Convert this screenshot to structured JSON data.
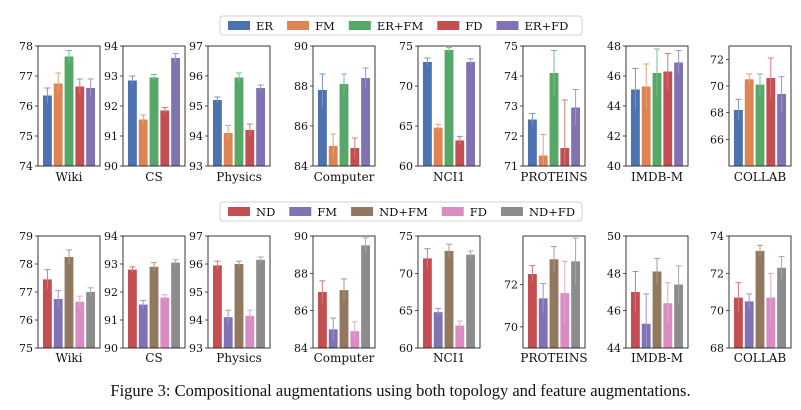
{
  "caption": "Figure 3: Compositional augmentations using both topology and feature augmentations.",
  "chart_data": [
    {
      "type": "bar",
      "legend": {
        "placement": "top-center",
        "series": [
          {
            "name": "ER",
            "color": "#4c72b0"
          },
          {
            "name": "FM",
            "color": "#dd8452"
          },
          {
            "name": "ER+FM",
            "color": "#55a868"
          },
          {
            "name": "FD",
            "color": "#c44e52"
          },
          {
            "name": "ER+FD",
            "color": "#8172b3"
          }
        ]
      },
      "panels": [
        {
          "dataset": "Wiki",
          "ylim": [
            74,
            78
          ],
          "ticks": [
            74,
            75,
            76,
            77,
            78
          ],
          "values": [
            76.35,
            76.75,
            77.65,
            76.65,
            76.6
          ],
          "errors": [
            0.25,
            0.35,
            0.2,
            0.25,
            0.3
          ]
        },
        {
          "dataset": "CS",
          "ylim": [
            90,
            94
          ],
          "ticks": [
            90,
            91,
            92,
            93,
            94
          ],
          "values": [
            92.85,
            91.55,
            92.95,
            91.85,
            93.6
          ],
          "errors": [
            0.15,
            0.15,
            0.1,
            0.1,
            0.15
          ]
        },
        {
          "dataset": "Physics",
          "ylim": [
            93,
            97
          ],
          "ticks": [
            93,
            94,
            95,
            96,
            97
          ],
          "values": [
            95.2,
            94.1,
            95.95,
            94.2,
            95.6
          ],
          "errors": [
            0.1,
            0.25,
            0.15,
            0.2,
            0.1
          ]
        },
        {
          "dataset": "Computer",
          "ylim": [
            84,
            90
          ],
          "ticks": [
            84,
            86,
            88,
            90
          ],
          "values": [
            87.8,
            85.0,
            88.1,
            84.9,
            88.4
          ],
          "errors": [
            0.8,
            0.6,
            0.5,
            0.5,
            0.5
          ]
        },
        {
          "dataset": "NCI1",
          "ylim": [
            60,
            75
          ],
          "ticks": [
            60,
            65,
            70,
            75
          ],
          "values": [
            73.0,
            64.8,
            74.5,
            63.2,
            73.0
          ],
          "errors": [
            0.5,
            0.4,
            0.3,
            0.5,
            0.4
          ]
        },
        {
          "dataset": "PROTEINS",
          "ylim": [
            71,
            75
          ],
          "ticks": [
            71,
            72,
            73,
            74,
            75
          ],
          "values": [
            72.55,
            71.35,
            74.1,
            71.6,
            72.95
          ],
          "errors": [
            0.2,
            0.7,
            0.75,
            1.6,
            0.6
          ]
        },
        {
          "dataset": "IMDB-M",
          "ylim": [
            40,
            48
          ],
          "ticks": [
            40,
            42,
            44,
            46,
            48
          ],
          "values": [
            45.1,
            45.3,
            46.2,
            46.3,
            46.9
          ],
          "errors": [
            1.4,
            1.5,
            1.6,
            1.2,
            0.8
          ]
        },
        {
          "dataset": "COLLAB",
          "ylim": [
            64,
            73
          ],
          "ticks": [
            66,
            68,
            70,
            72
          ],
          "values": [
            68.2,
            70.5,
            70.1,
            70.6,
            69.4
          ],
          "errors": [
            0.8,
            0.4,
            0.8,
            1.5,
            1.3
          ]
        }
      ]
    },
    {
      "type": "bar",
      "legend": {
        "placement": "top-center",
        "series": [
          {
            "name": "ND",
            "color": "#c44e52"
          },
          {
            "name": "FM",
            "color": "#8172b3"
          },
          {
            "name": "ND+FM",
            "color": "#937860"
          },
          {
            "name": "FD",
            "color": "#da8bc3"
          },
          {
            "name": "ND+FD",
            "color": "#8c8c8c"
          }
        ]
      },
      "panels": [
        {
          "dataset": "Wiki",
          "ylim": [
            75,
            79
          ],
          "ticks": [
            75,
            76,
            77,
            78,
            79
          ],
          "values": [
            77.45,
            76.75,
            78.25,
            76.65,
            77.0
          ],
          "errors": [
            0.35,
            0.3,
            0.25,
            0.2,
            0.15
          ]
        },
        {
          "dataset": "CS",
          "ylim": [
            90,
            94
          ],
          "ticks": [
            90,
            91,
            92,
            93,
            94
          ],
          "values": [
            92.8,
            91.55,
            92.9,
            91.8,
            93.05
          ],
          "errors": [
            0.1,
            0.15,
            0.15,
            0.1,
            0.1
          ]
        },
        {
          "dataset": "Physics",
          "ylim": [
            93,
            97
          ],
          "ticks": [
            93,
            94,
            95,
            96,
            97
          ],
          "values": [
            95.95,
            94.1,
            96.0,
            94.15,
            96.15
          ],
          "errors": [
            0.15,
            0.25,
            0.1,
            0.2,
            0.1
          ]
        },
        {
          "dataset": "Computer",
          "ylim": [
            84,
            90
          ],
          "ticks": [
            84,
            86,
            88,
            90
          ],
          "values": [
            87.0,
            85.0,
            87.1,
            84.9,
            89.5
          ],
          "errors": [
            0.6,
            0.6,
            0.6,
            0.5,
            0.4
          ]
        },
        {
          "dataset": "NCI1",
          "ylim": [
            60,
            75
          ],
          "ticks": [
            60,
            65,
            70,
            75
          ],
          "values": [
            72.0,
            64.8,
            73.0,
            63.0,
            72.5
          ],
          "errors": [
            1.3,
            0.5,
            0.9,
            0.6,
            0.5
          ]
        },
        {
          "dataset": "PROTEINS",
          "ylim": [
            69,
            74.3
          ],
          "ticks": [
            70,
            72
          ],
          "values": [
            72.5,
            71.35,
            73.2,
            71.6,
            73.1
          ],
          "errors": [
            0.4,
            0.7,
            0.6,
            1.5,
            1.1
          ]
        },
        {
          "dataset": "IMDB-M",
          "ylim": [
            44,
            50
          ],
          "ticks": [
            44,
            46,
            48,
            50
          ],
          "values": [
            47.0,
            45.3,
            48.1,
            46.4,
            47.4
          ],
          "errors": [
            1.1,
            1.6,
            0.7,
            1.1,
            1.0
          ]
        },
        {
          "dataset": "COLLAB",
          "ylim": [
            68,
            74
          ],
          "ticks": [
            68,
            70,
            72,
            74
          ],
          "values": [
            70.7,
            70.5,
            73.2,
            70.7,
            72.3
          ],
          "errors": [
            0.8,
            0.4,
            0.3,
            1.3,
            0.6
          ]
        }
      ]
    }
  ]
}
